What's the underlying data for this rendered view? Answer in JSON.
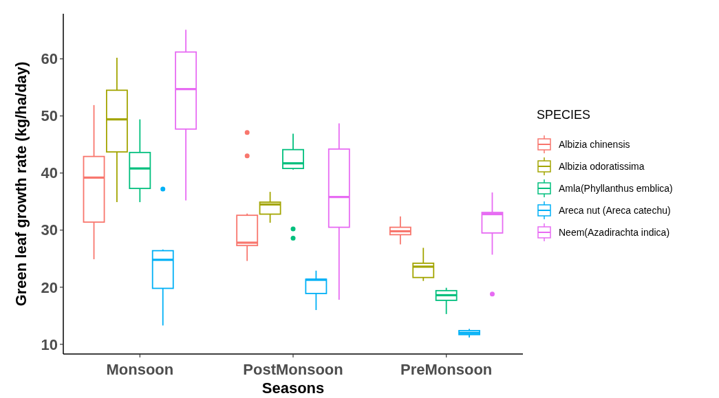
{
  "chart_data": {
    "type": "box",
    "xlabel": "Seasons",
    "ylabel": "Green leaf growth rate (kg/ha/day)",
    "legend_title": "SPECIES",
    "legend": "right",
    "grid": false,
    "categories": [
      "Monsoon",
      "PostMonsoon",
      "PreMonsoon"
    ],
    "ylim": [
      8.3,
      67.9
    ],
    "yticks": [
      10,
      20,
      30,
      40,
      50,
      60
    ],
    "series": [
      {
        "name": "Albizia chinensis",
        "color": "#f8766d",
        "boxes": [
          {
            "low": 24.9,
            "q1": 31.4,
            "median": 39.2,
            "q3": 42.9,
            "high": 51.9
          },
          {
            "low": 24.6,
            "q1": 27.3,
            "median": 27.8,
            "q3": 32.6,
            "high": 32.9,
            "outliers": [
              47.1,
              43.0
            ]
          },
          {
            "low": 27.5,
            "q1": 29.2,
            "median": 29.8,
            "q3": 30.5,
            "high": 32.4
          }
        ]
      },
      {
        "name": "Albizia odoratissima",
        "color": "#a3a500",
        "boxes": [
          {
            "low": 34.9,
            "q1": 43.7,
            "median": 49.4,
            "q3": 54.5,
            "high": 60.2
          },
          {
            "low": 31.3,
            "q1": 32.8,
            "median": 34.5,
            "q3": 34.9,
            "high": 36.7
          },
          {
            "low": 21.1,
            "q1": 21.7,
            "median": 23.6,
            "q3": 24.2,
            "high": 26.9
          }
        ]
      },
      {
        "name": "Amla(Phyllanthus emblica)",
        "color": "#00bf7d",
        "boxes": [
          {
            "low": 34.9,
            "q1": 37.3,
            "median": 40.8,
            "q3": 43.6,
            "high": 49.4
          },
          {
            "low": 40.6,
            "q1": 40.8,
            "median": 41.7,
            "q3": 44.1,
            "high": 46.9,
            "outliers": [
              30.2,
              28.6
            ]
          },
          {
            "low": 15.3,
            "q1": 17.7,
            "median": 18.6,
            "q3": 19.4,
            "high": 19.9
          }
        ]
      },
      {
        "name": "Areca nut (Areca catechu)",
        "color": "#00b0f6",
        "boxes": [
          {
            "low": 13.3,
            "q1": 19.8,
            "median": 24.8,
            "q3": 26.4,
            "high": 26.6,
            "outliers": [
              37.2
            ]
          },
          {
            "low": 16.0,
            "q1": 18.9,
            "median": 21.3,
            "q3": 21.4,
            "high": 22.9
          },
          {
            "low": 11.2,
            "q1": 11.7,
            "median": 12.0,
            "q3": 12.4,
            "high": 12.7
          }
        ]
      },
      {
        "name": "Neem(Azadirachta indica)",
        "color": "#e76bf3",
        "boxes": [
          {
            "low": 35.2,
            "q1": 47.7,
            "median": 54.7,
            "q3": 61.2,
            "high": 65.1
          },
          {
            "low": 17.8,
            "q1": 30.5,
            "median": 35.8,
            "q3": 44.2,
            "high": 48.7
          },
          {
            "low": 25.7,
            "q1": 29.5,
            "median": 32.8,
            "q3": 33.1,
            "high": 36.6,
            "outliers": [
              18.8
            ]
          }
        ]
      }
    ]
  }
}
